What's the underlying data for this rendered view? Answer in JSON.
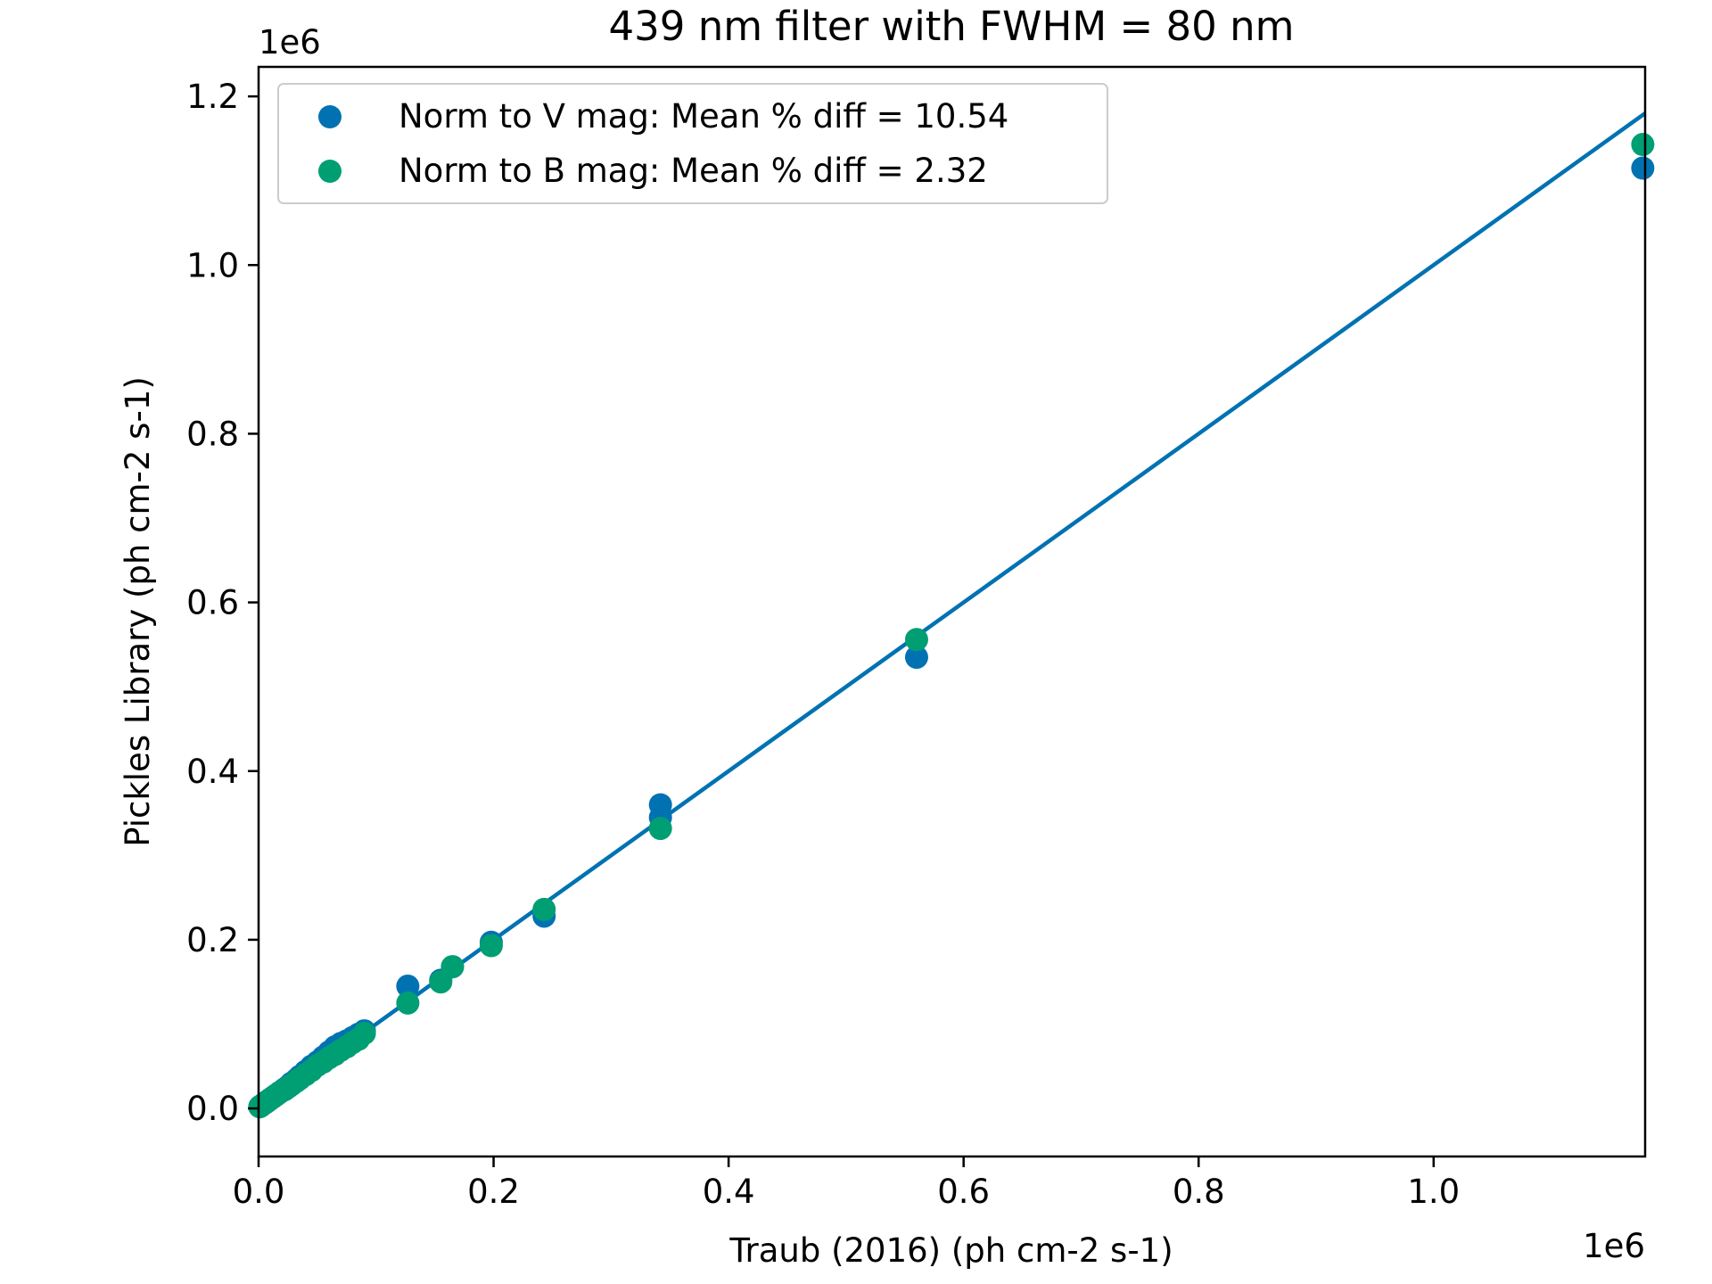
{
  "chart_data": {
    "type": "scatter",
    "title": "439 nm filter with FWHM = 80 nm",
    "xlabel": "Traub (2016) (ph cm-2 s-1)",
    "ylabel": "Pickles Library (ph cm-2 s-1)",
    "x_offset_label": "1e6",
    "y_offset_label": "1e6",
    "xlim": [
      0,
      1180000
    ],
    "ylim": [
      -57000,
      1235000
    ],
    "x_ticks": [
      0,
      200000,
      400000,
      600000,
      800000,
      1000000
    ],
    "x_tick_labels": [
      "0.0",
      "0.2",
      "0.4",
      "0.6",
      "0.8",
      "1.0"
    ],
    "y_ticks": [
      0,
      200000,
      400000,
      600000,
      800000,
      1000000,
      1200000
    ],
    "y_tick_labels": [
      "0.0",
      "0.2",
      "0.4",
      "0.6",
      "0.8",
      "1.0",
      "1.2"
    ],
    "grid": false,
    "legend_position": "top-left",
    "reference_line": {
      "x": [
        0,
        1180000
      ],
      "y": [
        0,
        1180000
      ],
      "color": "#0072b2"
    },
    "series": [
      {
        "name": "Norm to V mag: Mean % diff = 10.54",
        "color": "#0072b2",
        "x": [
          2000,
          5000,
          8000,
          12000,
          15000,
          18000,
          22000,
          25000,
          28000,
          32000,
          35000,
          40000,
          45000,
          50000,
          55000,
          60000,
          65000,
          70000,
          75000,
          80000,
          85000,
          90000,
          127000,
          155000,
          165000,
          198000,
          243000,
          342000,
          342000,
          560000,
          1178000
        ],
        "y": [
          3000,
          6000,
          9000,
          13000,
          16000,
          19000,
          23000,
          26000,
          30000,
          34000,
          38000,
          44000,
          50000,
          55000,
          61000,
          67000,
          73000,
          77000,
          80000,
          84000,
          88000,
          92000,
          145000,
          152000,
          168000,
          197000,
          228000,
          345000,
          360000,
          535000,
          1115000
        ]
      },
      {
        "name": "Norm to B mag: Mean % diff = 2.32",
        "color": "#009e73",
        "x": [
          1000,
          4000,
          7000,
          10000,
          14000,
          18000,
          22000,
          25000,
          28000,
          32000,
          35000,
          40000,
          45000,
          50000,
          55000,
          60000,
          65000,
          70000,
          75000,
          80000,
          85000,
          90000,
          127000,
          155000,
          165000,
          198000,
          243000,
          342000,
          560000,
          1178000
        ],
        "y": [
          2000,
          5000,
          8000,
          11000,
          15000,
          19000,
          22000,
          25000,
          28000,
          32000,
          35000,
          40000,
          45000,
          51000,
          55000,
          60000,
          64000,
          69000,
          73000,
          78000,
          82000,
          89000,
          125000,
          150000,
          168000,
          193000,
          236000,
          332000,
          556000,
          1143000
        ]
      }
    ]
  }
}
